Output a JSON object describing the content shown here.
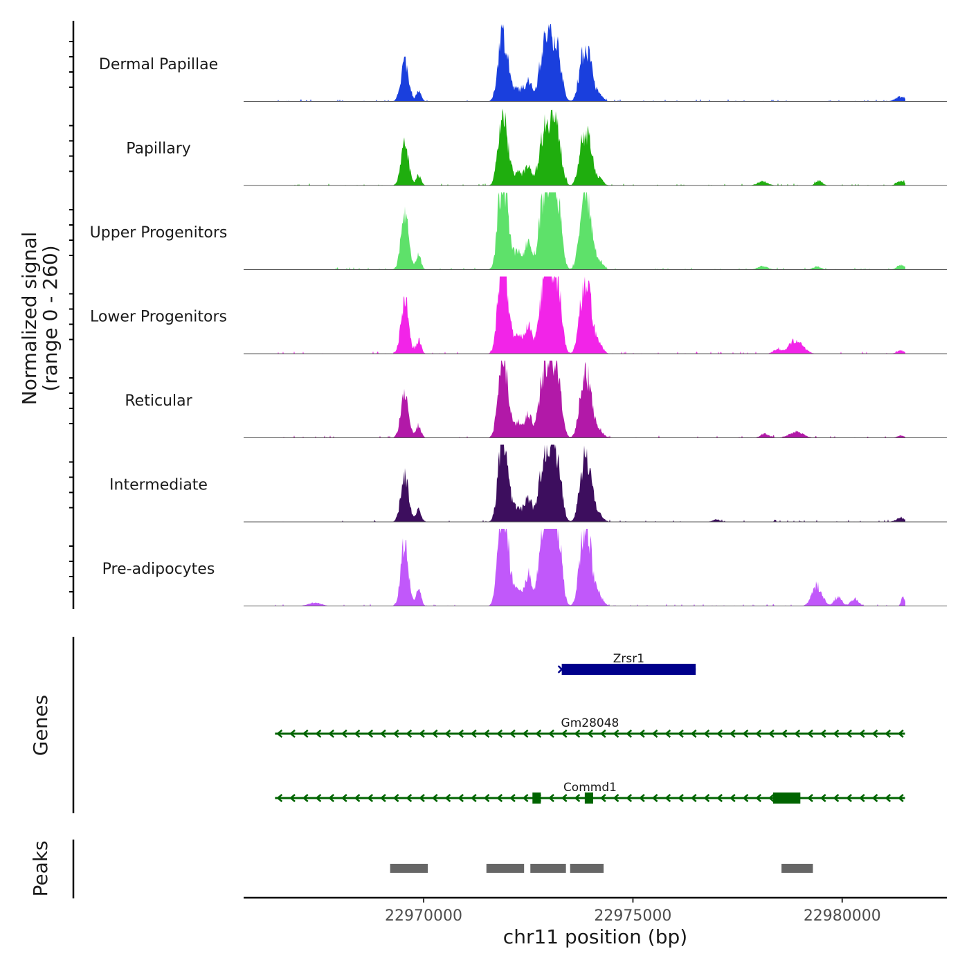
{
  "chart_data": {
    "type": "area",
    "title": "",
    "chromosome": "chr11",
    "xlabel": "chr11 position (bp)",
    "ylabel": "Normalized signal",
    "ylabel_sub": "(range 0 - 260)",
    "xlim": [
      22965700,
      22982500
    ],
    "signal_ylim": [
      0,
      260
    ],
    "x_ticks": [
      22970000,
      22975000,
      22980000
    ],
    "x_tick_labels": [
      "22970000",
      "22975000",
      "22980000"
    ],
    "signal_range_bp": [
      22966400,
      22981500
    ],
    "peak_profile": [
      {
        "pos": 22969550,
        "width": 90,
        "rel": 1.0
      },
      {
        "pos": 22969880,
        "width": 60,
        "rel": 0.25
      },
      {
        "pos": 22971850,
        "width": 90,
        "rel": 1.35
      },
      {
        "pos": 22971990,
        "width": 90,
        "rel": 0.85
      },
      {
        "pos": 22972250,
        "width": 90,
        "rel": 0.3
      },
      {
        "pos": 22972500,
        "width": 90,
        "rel": 0.5
      },
      {
        "pos": 22972800,
        "width": 90,
        "rel": 0.55
      },
      {
        "pos": 22972950,
        "width": 110,
        "rel": 1.3
      },
      {
        "pos": 22973100,
        "width": 90,
        "rel": 0.85
      },
      {
        "pos": 22973230,
        "width": 90,
        "rel": 0.9
      },
      {
        "pos": 22973750,
        "width": 80,
        "rel": 0.35
      },
      {
        "pos": 22973900,
        "width": 120,
        "rel": 1.25
      },
      {
        "pos": 22974200,
        "width": 90,
        "rel": 0.15
      }
    ],
    "tracks": [
      {
        "name": "Dermal Papillae",
        "color": "#1A3FDD",
        "peak_scale": 1.0,
        "extra_peaks": [
          {
            "pos": 22981400,
            "width": 120,
            "rel": 0.12
          }
        ]
      },
      {
        "name": "Papillary",
        "color": "#1FAE0E",
        "peak_scale": 1.0,
        "extra_peaks": [
          {
            "pos": 22978100,
            "width": 120,
            "rel": 0.1
          },
          {
            "pos": 22979450,
            "width": 80,
            "rel": 0.12
          },
          {
            "pos": 22981400,
            "width": 100,
            "rel": 0.1
          }
        ]
      },
      {
        "name": "Upper Progenitors",
        "color": "#5EE16A",
        "peak_scale": 1.35,
        "extra_peaks": [
          {
            "pos": 22978100,
            "width": 120,
            "rel": 0.08
          },
          {
            "pos": 22979400,
            "width": 90,
            "rel": 0.08
          },
          {
            "pos": 22981400,
            "width": 90,
            "rel": 0.12
          }
        ]
      },
      {
        "name": "Lower Progenitors",
        "color": "#F224E8",
        "peak_scale": 1.35,
        "extra_peaks": [
          {
            "pos": 22978900,
            "width": 160,
            "rel": 0.35
          },
          {
            "pos": 22978450,
            "width": 100,
            "rel": 0.1
          },
          {
            "pos": 22981400,
            "width": 90,
            "rel": 0.08
          }
        ]
      },
      {
        "name": "Reticular",
        "color": "#B219A8",
        "peak_scale": 1.2,
        "extra_peaks": [
          {
            "pos": 22978900,
            "width": 160,
            "rel": 0.15
          },
          {
            "pos": 22978150,
            "width": 100,
            "rel": 0.1
          },
          {
            "pos": 22981400,
            "width": 90,
            "rel": 0.05
          }
        ]
      },
      {
        "name": "Intermediate",
        "color": "#3D0E5E",
        "peak_scale": 1.2,
        "extra_peaks": [
          {
            "pos": 22981400,
            "width": 110,
            "rel": 0.1
          },
          {
            "pos": 22977000,
            "width": 90,
            "rel": 0.06
          }
        ]
      },
      {
        "name": "Pre-adipocytes",
        "color": "#C158FA",
        "peak_scale": 1.55,
        "extra_peaks": [
          {
            "pos": 22979400,
            "width": 120,
            "rel": 0.5
          },
          {
            "pos": 22979900,
            "width": 90,
            "rel": 0.22
          },
          {
            "pos": 22980300,
            "width": 90,
            "rel": 0.18
          },
          {
            "pos": 22967400,
            "width": 150,
            "rel": 0.08
          },
          {
            "pos": 22981450,
            "width": 40,
            "rel": 0.25
          }
        ]
      }
    ],
    "genes": [
      {
        "name": "Zrsr1",
        "color": "#00008B",
        "strand": "+",
        "start": 22973300,
        "end": 22976500,
        "exons": [
          [
            22973300,
            22976500
          ]
        ]
      },
      {
        "name": "Gm28048",
        "color": "#006400",
        "strand": "-",
        "start": 22966450,
        "end": 22981500,
        "exons": []
      },
      {
        "name": "Commd1",
        "color": "#006400",
        "strand": "-",
        "start": 22966450,
        "end": 22981500,
        "exons": [
          [
            22972600,
            22972800
          ],
          [
            22973850,
            22974050
          ],
          [
            22978350,
            22979000
          ]
        ]
      }
    ],
    "peaks": [
      {
        "start": 22969200,
        "end": 22970100
      },
      {
        "start": 22971500,
        "end": 22972400
      },
      {
        "start": 22972550,
        "end": 22973400
      },
      {
        "start": 22973500,
        "end": 22974300
      },
      {
        "start": 22978550,
        "end": 22979300
      }
    ],
    "genes_label": "Genes",
    "peaks_label": "Peaks"
  }
}
